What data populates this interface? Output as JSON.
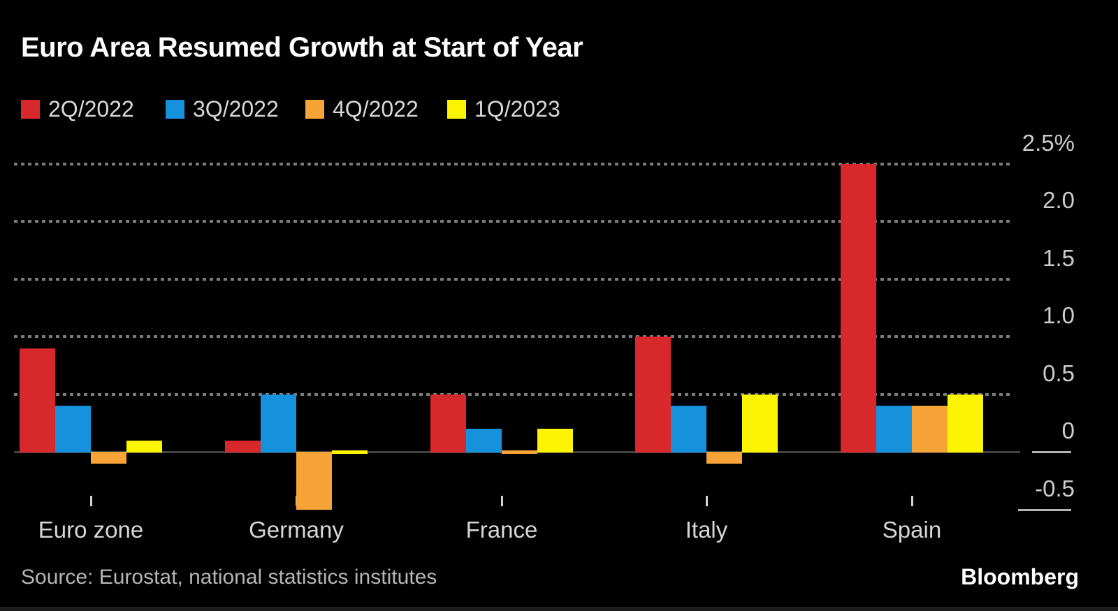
{
  "chart_data": {
    "type": "bar",
    "title": "Euro Area Resumed Growth at Start of Year",
    "unit": "%",
    "categories": [
      "Euro zone",
      "Germany",
      "France",
      "Italy",
      "Spain"
    ],
    "series": [
      {
        "name": "2Q/2022",
        "color": "#d7282c",
        "values": [
          0.9,
          0.1,
          0.5,
          1.0,
          2.5
        ]
      },
      {
        "name": "3Q/2022",
        "color": "#1691dc",
        "values": [
          0.4,
          0.5,
          0.2,
          0.4,
          0.4
        ]
      },
      {
        "name": "4Q/2022",
        "color": "#f6a438",
        "values": [
          -0.1,
          -0.5,
          0.0,
          -0.1,
          0.4
        ]
      },
      {
        "name": "1Q/2023",
        "color": "#fcf403",
        "values": [
          0.1,
          0.0,
          0.2,
          0.5,
          0.5
        ]
      }
    ],
    "yticks": [
      2.5,
      2.0,
      1.5,
      1.0,
      0.5,
      0,
      -0.5
    ],
    "ytick_labels": [
      "2.5%",
      "2.0",
      "1.5",
      "1.0",
      "0.5",
      "0",
      "-0.5"
    ],
    "ylim": [
      -0.75,
      2.75
    ],
    "grid": "horizontal-dotted",
    "legend_position": "top-left",
    "axis_side": "right"
  },
  "footer": {
    "source": "Source: Eurostat, national statistics institutes",
    "brand": "Bloomberg"
  }
}
